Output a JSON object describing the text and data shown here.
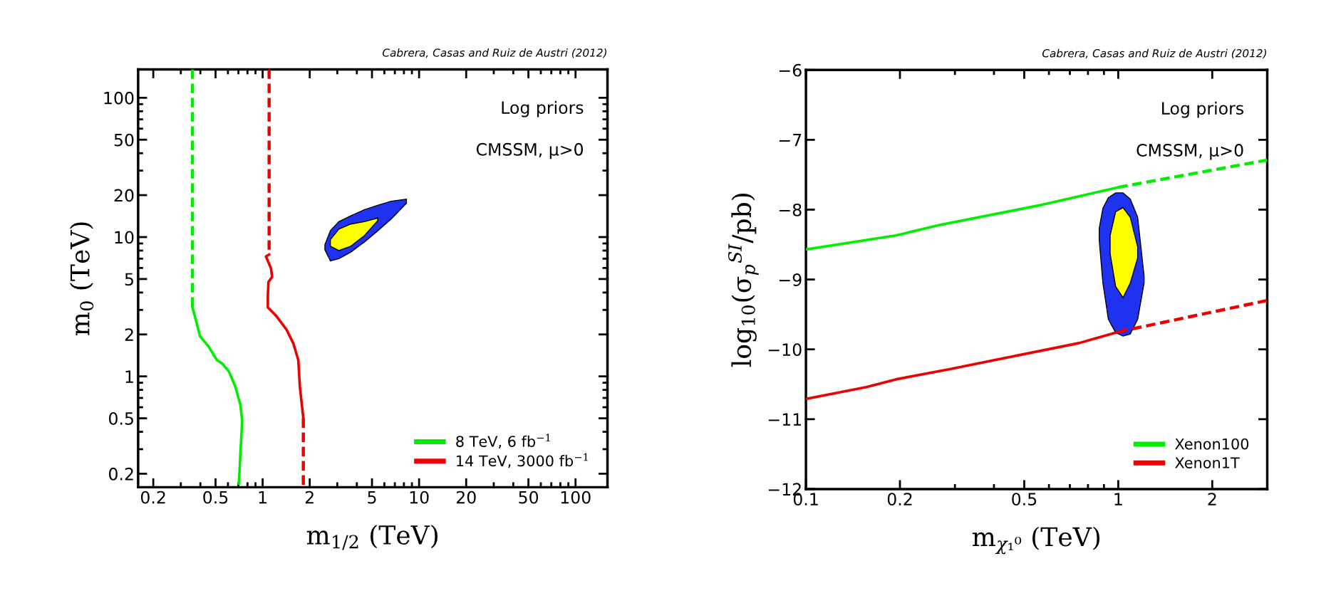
{
  "chart_data": [
    {
      "type": "line",
      "xlabel": "m$_{1/2}$ (TeV)",
      "ylabel": "m$_{0}$ (TeV)",
      "log": "xy",
      "grid": false,
      "legend": "bottom right",
      "marker": "none",
      "xlim": [
        0.16,
        160
      ],
      "ylim": [
        0.16,
        160
      ],
      "xticks": [
        0.2,
        0.5,
        1,
        2,
        5,
        10,
        20,
        50,
        100
      ],
      "yticks": [
        0.2,
        0.5,
        1,
        2,
        5,
        10,
        20,
        50,
        100
      ],
      "annotations": [
        "Cabrera, Casas and Ruiz de Austri (2012)",
        "Log priors",
        "CMSSM, μ>0"
      ],
      "series": [
        {
          "line_style": "dashed",
          "color": "#00ee00",
          "x": [
            0.356,
            0.356
          ],
          "values": [
            160,
            3.13
          ]
        },
        {
          "line_style": "solid",
          "name": "8 TeV, 6 fb$^{−1}$",
          "color": "#00ee00",
          "x": [
            0.356,
            0.378,
            0.398,
            0.451,
            0.51,
            0.55,
            0.61,
            0.67,
            0.72,
            0.74,
            0.72,
            0.705
          ],
          "values": [
            3.13,
            2.43,
            1.94,
            1.64,
            1.31,
            1.24,
            1.08,
            0.84,
            0.63,
            0.48,
            0.27,
            0.17
          ]
        },
        {
          "line_style": "dashed",
          "color": "#ee0000",
          "x": [
            1.1,
            1.1
          ],
          "values": [
            160,
            7.5
          ]
        },
        {
          "line_style": "solid",
          "name": "14 TeV, 3000 fb$^{−1}$",
          "color": "#ee0000",
          "x": [
            1.1,
            1.05,
            1.13,
            1.15,
            1.09,
            1.08,
            1.08,
            1.22,
            1.42,
            1.57,
            1.69,
            1.73,
            1.82
          ],
          "values": [
            7.5,
            7.26,
            5.97,
            5.18,
            4.76,
            3.81,
            3.13,
            2.72,
            2.17,
            1.73,
            1.31,
            0.84,
            0.5
          ]
        },
        {
          "line_style": "dashed",
          "color": "#ee0000",
          "x": [
            1.82,
            1.82
          ],
          "values": [
            0.5,
            0.16
          ]
        },
        {
          "type": "area",
          "color": "#1e32f0",
          "x": [
            2.5,
            2.71,
            3.07,
            3.66,
            4.46,
            5.44,
            6.64,
            8.3,
            8.3,
            6.64,
            5.44,
            4.46,
            3.66,
            3.07,
            2.71,
            2.5
          ],
          "values": [
            8.8,
            11.1,
            12.9,
            14.2,
            15.7,
            16.9,
            18.1,
            18.7,
            17.5,
            13.5,
            11.1,
            9.2,
            7.8,
            7.0,
            6.75,
            8.1
          ]
        },
        {
          "type": "area",
          "color": "#ffff00",
          "x": [
            2.71,
            3.07,
            3.66,
            4.46,
            5.44,
            5.44,
            4.46,
            3.66,
            3.07,
            2.71
          ],
          "values": [
            9.6,
            11.4,
            12.4,
            12.9,
            13.7,
            13.1,
            10.2,
            8.6,
            8.0,
            8.6
          ]
        }
      ]
    },
    {
      "type": "line",
      "xlabel": "m$_{χ₁⁰}$ (TeV)",
      "ylabel": "log$_{10}$(σ$_{p}$$^{SI}$/pb)",
      "log": "x",
      "grid": false,
      "legend": "bottom right",
      "marker": "none",
      "xlim": [
        0.1,
        3
      ],
      "ylim": [
        -12,
        -6
      ],
      "xticks": [
        0.1,
        0.2,
        0.5,
        1,
        2
      ],
      "yticks": [
        -12,
        -11,
        -10,
        -9,
        -8,
        -7,
        -6
      ],
      "annotations": [
        "Cabrera, Casas and Ruiz de Austri (2012)",
        "Log priors",
        "CMSSM, μ>0"
      ],
      "series": [
        {
          "line_style": "solid",
          "name": "Xenon100",
          "color": "#00ee00",
          "x": [
            0.1,
            0.194,
            0.268,
            0.571,
            1
          ],
          "values": [
            -8.57,
            -8.37,
            -8.22,
            -7.93,
            -7.68
          ]
        },
        {
          "line_style": "dashed",
          "color": "#00ee00",
          "x": [
            1,
            3
          ],
          "values": [
            -7.68,
            -7.29
          ]
        },
        {
          "line_style": "solid",
          "name": "Xenon1T",
          "color": "#ee0000",
          "x": [
            0.1,
            0.156,
            0.194,
            0.291,
            0.749,
            1
          ],
          "values": [
            -10.71,
            -10.54,
            -10.43,
            -10.28,
            -9.91,
            -9.75
          ]
        },
        {
          "line_style": "dashed",
          "color": "#ee0000",
          "x": [
            1,
            3
          ],
          "values": [
            -9.75,
            -9.3
          ]
        },
        {
          "type": "area",
          "color": "#1e32f0",
          "x": [
            0.869,
            0.893,
            0.93,
            0.981,
            1.036,
            1.093,
            1.154,
            1.21,
            1.21,
            1.154,
            1.093,
            1.036,
            0.981,
            0.93,
            0.893,
            0.869
          ],
          "values": [
            -8.27,
            -7.98,
            -7.83,
            -7.76,
            -7.76,
            -7.85,
            -8.11,
            -8.95,
            -9.05,
            -9.57,
            -9.78,
            -9.81,
            -9.76,
            -9.57,
            -9.05,
            -8.43
          ]
        },
        {
          "type": "area",
          "color": "#ffff00",
          "x": [
            0.942,
            0.981,
            1.036,
            1.093,
            1.154,
            1.154,
            1.093,
            1.036,
            0.981,
            0.942
          ],
          "values": [
            -8.37,
            -8.03,
            -7.97,
            -8.11,
            -8.53,
            -8.69,
            -9.05,
            -9.26,
            -9.1,
            -8.63
          ]
        }
      ]
    }
  ]
}
